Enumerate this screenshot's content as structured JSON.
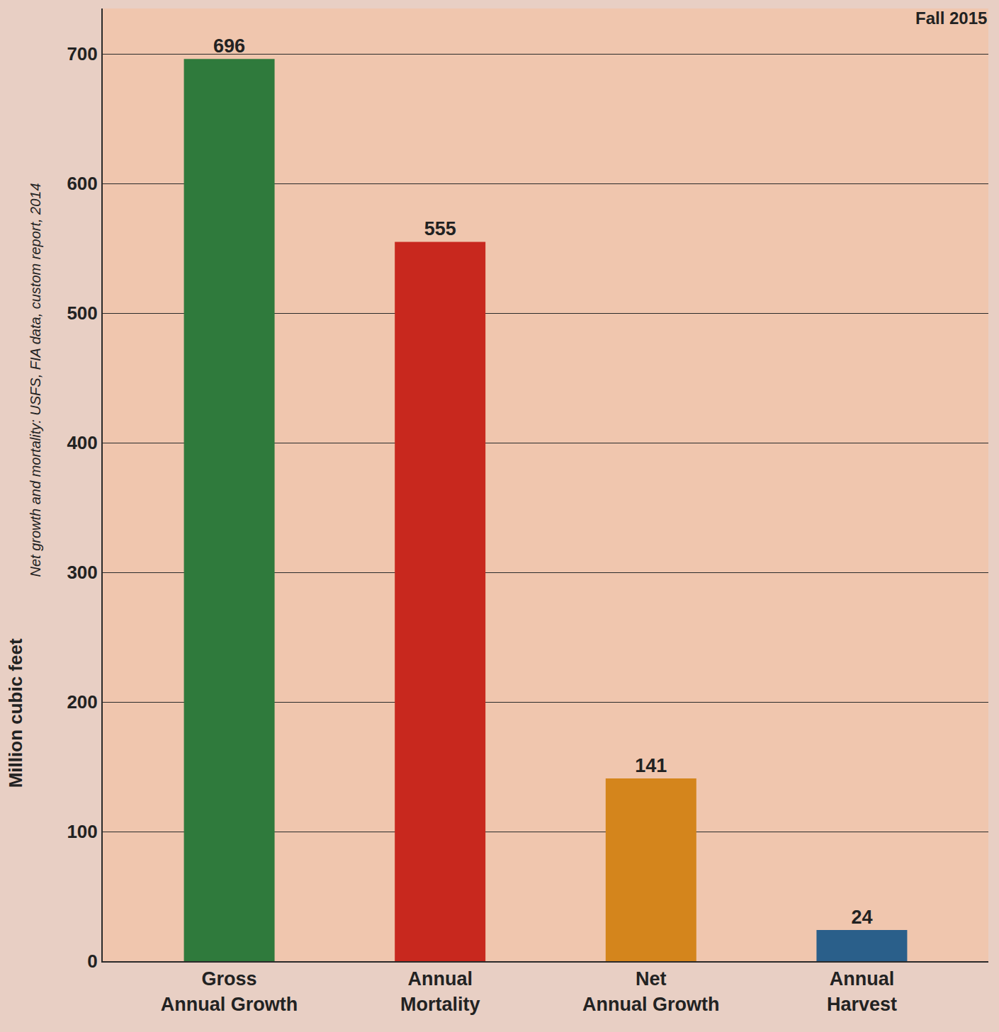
{
  "chart_data": {
    "type": "bar",
    "ylabel": "Million cubic feet",
    "annotations": [
      "Fall 2015",
      "Net growth and mortality: USFS, FIA data, custom report, 2014"
    ],
    "categories": [
      "Gross Annual Growth",
      "Annual Mortality",
      "Net Annual Growth",
      "Annual Harvest"
    ],
    "values": [
      696,
      555,
      141,
      24
    ],
    "colors": [
      "#2f7a3c",
      "#c8281e",
      "#d4851c",
      "#2a5f8a"
    ],
    "ylim": [
      0,
      735
    ],
    "yticks": [
      0,
      100,
      200,
      300,
      400,
      500,
      600,
      700
    ],
    "grid": true,
    "data_labels": true
  }
}
